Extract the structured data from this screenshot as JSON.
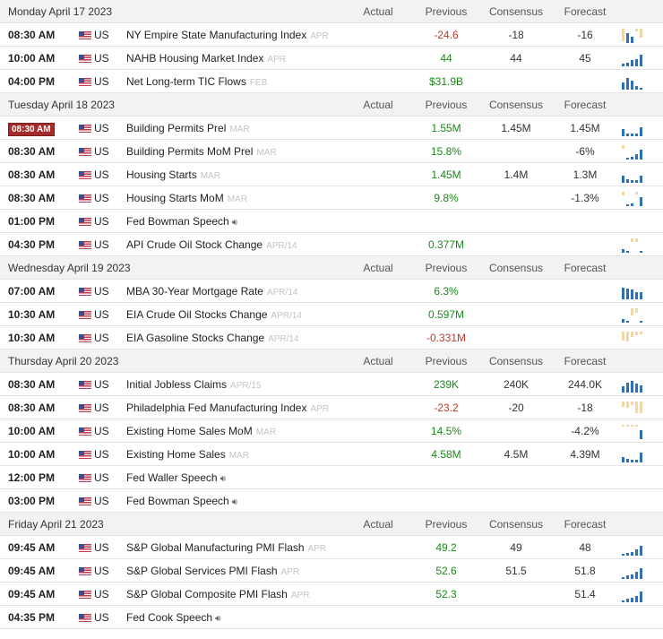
{
  "columns": {
    "actual": "Actual",
    "previous": "Previous",
    "consensus": "Consensus",
    "forecast": "Forecast"
  },
  "colors": {
    "positive": "#1a8a1a",
    "negative": "#c0392b",
    "spark_blue": "#2f6fb6",
    "spark_tan": "#f1d7a6",
    "live_badge": "#a52a2a"
  },
  "days": [
    {
      "date": "Monday April 17 2023",
      "events": [
        {
          "time": "08:30 AM",
          "country": "US",
          "name": "NY Empire State Manufacturing Index",
          "period": "APR",
          "actual": "",
          "previous": "-24.6",
          "previous_tone": "neg",
          "consensus": "-18",
          "forecast": "-16",
          "spark": [
            [
              1,
              1
            ],
            [
              0.8,
              0
            ],
            [
              0.5,
              0
            ],
            [
              0.2,
              1
            ],
            [
              0.7,
              1
            ]
          ],
          "speech": false,
          "live": false
        },
        {
          "time": "10:00 AM",
          "country": "US",
          "name": "NAHB Housing Market Index",
          "period": "APR",
          "actual": "",
          "previous": "44",
          "previous_tone": "pos",
          "consensus": "44",
          "forecast": "45",
          "spark": [
            [
              0.2,
              0
            ],
            [
              0.3,
              0
            ],
            [
              0.5,
              0
            ],
            [
              0.6,
              0
            ],
            [
              0.9,
              0
            ]
          ],
          "speech": false,
          "live": false
        },
        {
          "time": "04:00 PM",
          "country": "US",
          "name": "Net Long-term TIC Flows",
          "period": "FEB",
          "actual": "",
          "previous": "$31.9B",
          "previous_tone": "pos",
          "consensus": "",
          "forecast": "",
          "spark": [
            [
              0.6,
              0
            ],
            [
              0.9,
              0
            ],
            [
              0.7,
              0
            ],
            [
              0.3,
              0
            ],
            [
              0.0,
              0
            ]
          ],
          "speech": false,
          "live": false
        }
      ]
    },
    {
      "date": "Tuesday April 18 2023",
      "events": [
        {
          "time": "08:30 AM",
          "country": "US",
          "name": "Building Permits Prel",
          "period": "MAR",
          "actual": "",
          "previous": "1.55M",
          "previous_tone": "pos",
          "consensus": "1.45M",
          "forecast": "1.45M",
          "spark": [
            [
              0.6,
              0
            ],
            [
              0.2,
              0
            ],
            [
              0.2,
              0
            ],
            [
              0.2,
              0
            ],
            [
              0.7,
              0
            ]
          ],
          "speech": false,
          "live": true
        },
        {
          "time": "08:30 AM",
          "country": "US",
          "name": "Building Permits MoM Prel",
          "period": "MAR",
          "actual": "",
          "previous": "15.8%",
          "previous_tone": "pos",
          "consensus": "",
          "forecast": "-6%",
          "spark": [
            [
              0.3,
              1
            ],
            [
              0.0,
              0
            ],
            [
              0.2,
              0
            ],
            [
              0.4,
              0
            ],
            [
              0.8,
              0
            ]
          ],
          "speech": false,
          "live": false
        },
        {
          "time": "08:30 AM",
          "country": "US",
          "name": "Housing Starts",
          "period": "MAR",
          "actual": "",
          "previous": "1.45M",
          "previous_tone": "pos",
          "consensus": "1.4M",
          "forecast": "1.3M",
          "spark": [
            [
              0.6,
              0
            ],
            [
              0.3,
              0
            ],
            [
              0.2,
              0
            ],
            [
              0.2,
              0
            ],
            [
              0.6,
              0
            ]
          ],
          "speech": false,
          "live": false
        },
        {
          "time": "08:30 AM",
          "country": "US",
          "name": "Housing Starts MoM",
          "period": "MAR",
          "actual": "",
          "previous": "9.8%",
          "previous_tone": "pos",
          "consensus": "",
          "forecast": "-1.3%",
          "spark": [
            [
              0.3,
              1
            ],
            [
              0.0,
              0
            ],
            [
              0.2,
              0
            ],
            [
              0.2,
              1
            ],
            [
              0.7,
              0
            ]
          ],
          "speech": false,
          "live": false
        },
        {
          "time": "01:00 PM",
          "country": "US",
          "name": "Fed Bowman Speech",
          "period": "",
          "actual": "",
          "previous": "",
          "previous_tone": "pos",
          "consensus": "",
          "forecast": "",
          "spark": [],
          "speech": true,
          "live": false
        },
        {
          "time": "04:30 PM",
          "country": "US",
          "name": "API Crude Oil Stock Change",
          "period": "APR/14",
          "actual": "",
          "previous": "0.377M",
          "previous_tone": "pos",
          "consensus": "",
          "forecast": "",
          "spark": [
            [
              0.25,
              0
            ],
            [
              0.0,
              0
            ],
            [
              0.3,
              1
            ],
            [
              0.3,
              1
            ],
            [
              0.15,
              0
            ]
          ],
          "speech": false,
          "live": false
        }
      ]
    },
    {
      "date": "Wednesday April 19 2023",
      "events": [
        {
          "time": "07:00 AM",
          "country": "US",
          "name": "MBA 30-Year Mortgage Rate",
          "period": "APR/14",
          "actual": "",
          "previous": "6.3%",
          "previous_tone": "pos",
          "consensus": "",
          "forecast": "",
          "spark": [
            [
              0.9,
              0
            ],
            [
              0.85,
              0
            ],
            [
              0.8,
              0
            ],
            [
              0.6,
              0
            ],
            [
              0.55,
              0
            ]
          ],
          "speech": false,
          "live": false
        },
        {
          "time": "10:30 AM",
          "country": "US",
          "name": "EIA Crude Oil Stocks Change",
          "period": "APR/14",
          "actual": "",
          "previous": "0.597M",
          "previous_tone": "pos",
          "consensus": "",
          "forecast": "",
          "spark": [
            [
              0.25,
              0
            ],
            [
              0.0,
              0
            ],
            [
              0.6,
              1
            ],
            [
              0.35,
              1
            ],
            [
              0.15,
              0
            ]
          ],
          "speech": false,
          "live": false
        },
        {
          "time": "10:30 AM",
          "country": "US",
          "name": "EIA Gasoline Stocks Change",
          "period": "APR/14",
          "actual": "",
          "previous": "-0.331M",
          "previous_tone": "neg",
          "consensus": "",
          "forecast": "",
          "spark": [
            [
              0.7,
              1
            ],
            [
              0.8,
              1
            ],
            [
              0.4,
              1
            ],
            [
              0.3,
              1
            ],
            [
              0.2,
              1
            ]
          ],
          "speech": false,
          "live": false
        }
      ]
    },
    {
      "date": "Thursday April 20 2023",
      "events": [
        {
          "time": "08:30 AM",
          "country": "US",
          "name": "Initial Jobless Claims",
          "period": "APR/15",
          "actual": "",
          "previous": "239K",
          "previous_tone": "pos",
          "consensus": "240K",
          "forecast": "244.0K",
          "spark": [
            [
              0.5,
              0
            ],
            [
              0.8,
              0
            ],
            [
              0.9,
              0
            ],
            [
              0.7,
              0
            ],
            [
              0.6,
              0
            ]
          ],
          "speech": false,
          "live": false
        },
        {
          "time": "08:30 AM",
          "country": "US",
          "name": "Philadelphia Fed Manufacturing Index",
          "period": "APR",
          "actual": "",
          "previous": "-23.2",
          "previous_tone": "neg",
          "consensus": "-20",
          "forecast": "-18",
          "spark": [
            [
              0.4,
              1
            ],
            [
              0.5,
              1
            ],
            [
              0.3,
              1
            ],
            [
              0.9,
              1
            ],
            [
              0.9,
              1
            ]
          ],
          "speech": false,
          "live": false
        },
        {
          "time": "10:00 AM",
          "country": "US",
          "name": "Existing Home Sales MoM",
          "period": "MAR",
          "actual": "",
          "previous": "14.5%",
          "previous_tone": "pos",
          "consensus": "",
          "forecast": "-4.2%",
          "spark": [
            [
              0.15,
              1
            ],
            [
              0.1,
              1
            ],
            [
              0.1,
              1
            ],
            [
              0.1,
              1
            ],
            [
              0.7,
              0
            ]
          ],
          "speech": false,
          "live": false
        },
        {
          "time": "10:00 AM",
          "country": "US",
          "name": "Existing Home Sales",
          "period": "MAR",
          "actual": "",
          "previous": "4.58M",
          "previous_tone": "pos",
          "consensus": "4.5M",
          "forecast": "4.39M",
          "spark": [
            [
              0.4,
              0
            ],
            [
              0.3,
              0
            ],
            [
              0.2,
              0
            ],
            [
              0.2,
              0
            ],
            [
              0.8,
              0
            ]
          ],
          "speech": false,
          "live": false
        },
        {
          "time": "12:00 PM",
          "country": "US",
          "name": "Fed Waller Speech",
          "period": "",
          "actual": "",
          "previous": "",
          "previous_tone": "pos",
          "consensus": "",
          "forecast": "",
          "spark": [],
          "speech": true,
          "live": false
        },
        {
          "time": "03:00 PM",
          "country": "US",
          "name": "Fed Bowman Speech",
          "period": "",
          "actual": "",
          "previous": "",
          "previous_tone": "pos",
          "consensus": "",
          "forecast": "",
          "spark": [],
          "speech": true,
          "live": false
        }
      ]
    },
    {
      "date": "Friday April 21 2023",
      "events": [
        {
          "time": "09:45 AM",
          "country": "US",
          "name": "S&P Global Manufacturing PMI Flash",
          "period": "APR",
          "actual": "",
          "previous": "49.2",
          "previous_tone": "pos",
          "consensus": "49",
          "forecast": "48",
          "spark": [
            [
              0.1,
              0
            ],
            [
              0.2,
              0
            ],
            [
              0.3,
              0
            ],
            [
              0.5,
              0
            ],
            [
              0.8,
              0
            ]
          ],
          "speech": false,
          "live": false
        },
        {
          "time": "09:45 AM",
          "country": "US",
          "name": "S&P Global Services PMI Flash",
          "period": "APR",
          "actual": "",
          "previous": "52.6",
          "previous_tone": "pos",
          "consensus": "51.5",
          "forecast": "51.8",
          "spark": [
            [
              0.1,
              0
            ],
            [
              0.25,
              0
            ],
            [
              0.35,
              0
            ],
            [
              0.55,
              0
            ],
            [
              0.85,
              0
            ]
          ],
          "speech": false,
          "live": false
        },
        {
          "time": "09:45 AM",
          "country": "US",
          "name": "S&P Global Composite PMI Flash",
          "period": "APR",
          "actual": "",
          "previous": "52.3",
          "previous_tone": "pos",
          "consensus": "",
          "forecast": "51.4",
          "spark": [
            [
              0.1,
              0
            ],
            [
              0.25,
              0
            ],
            [
              0.35,
              0
            ],
            [
              0.5,
              0
            ],
            [
              0.85,
              0
            ]
          ],
          "speech": false,
          "live": false
        },
        {
          "time": "04:35 PM",
          "country": "US",
          "name": "Fed Cook Speech",
          "period": "",
          "actual": "",
          "previous": "",
          "previous_tone": "pos",
          "consensus": "",
          "forecast": "",
          "spark": [],
          "speech": true,
          "live": false
        }
      ]
    }
  ]
}
